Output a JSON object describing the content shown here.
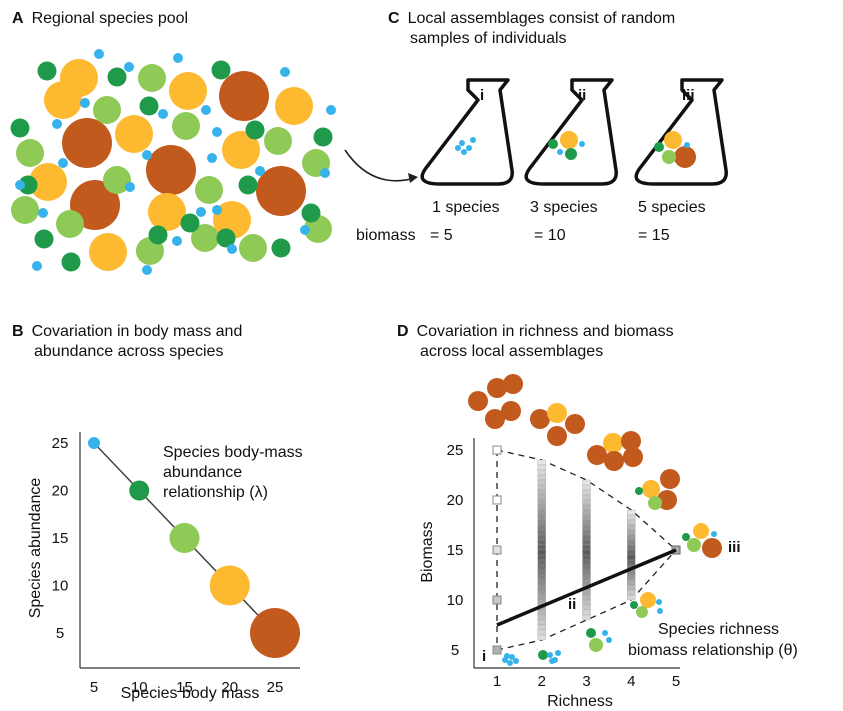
{
  "colors": {
    "tiny": "#36b3ea",
    "small": "#1f9a4a",
    "medium": "#8fca57",
    "large": "#fdb92f",
    "xlarge": "#c25a1e"
  },
  "panelA": {
    "letter": "A",
    "title": "Regional species pool"
  },
  "panelB": {
    "letter": "B",
    "title_line1": "Covariation in body mass and",
    "title_line2": "abundance across species",
    "annotation_line1": "Species body-mass",
    "annotation_line2": "abundance",
    "annotation_line3": "relationship (λ)",
    "chart_data": {
      "type": "scatter",
      "xlabel": "Species body mass",
      "ylabel": "Species abundance",
      "x_ticks": [
        "5",
        "10",
        "15",
        "20",
        "25"
      ],
      "y_ticks": [
        "25",
        "20",
        "15",
        "10",
        "5"
      ],
      "points": [
        {
          "x": 5,
          "y": 25,
          "color": "tiny"
        },
        {
          "x": 10,
          "y": 20,
          "color": "small"
        },
        {
          "x": 15,
          "y": 15,
          "color": "medium"
        },
        {
          "x": 20,
          "y": 10,
          "color": "large"
        },
        {
          "x": 25,
          "y": 5,
          "color": "xlarge"
        }
      ]
    }
  },
  "panelC": {
    "letter": "C",
    "title_line1": "Local assemblages consist of random",
    "title_line2": "samples of individuals",
    "flasks": [
      {
        "label": "i",
        "species": "1 species",
        "biomass": "= 5"
      },
      {
        "label": "ii",
        "species": "3 species",
        "biomass": "= 10"
      },
      {
        "label": "iii",
        "species": "5 species",
        "biomass": "= 15"
      }
    ],
    "biomass_prefix": "biomass"
  },
  "panelD": {
    "letter": "D",
    "title_line1": "Covariation in richness and biomass",
    "title_line2": "across local assemblages",
    "annotation_line1": "Species richness",
    "annotation_line2": "biomass relationship (θ)",
    "marker_i": "i",
    "marker_ii": "ii",
    "marker_iii": "iii",
    "chart_data": {
      "type": "scatter",
      "xlabel": "Richness",
      "ylabel": "Biomass",
      "x_ticks": [
        "1",
        "2",
        "3",
        "4",
        "5"
      ],
      "y_ticks": [
        "25",
        "20",
        "15",
        "10",
        "5"
      ],
      "xlim": [
        1,
        5
      ],
      "ylim": [
        5,
        25
      ],
      "ranges": [
        {
          "richness": 1,
          "min": 5,
          "max": 25
        },
        {
          "richness": 2,
          "min": 6,
          "max": 24
        },
        {
          "richness": 3,
          "min": 8,
          "max": 22
        },
        {
          "richness": 4,
          "min": 10,
          "max": 19
        },
        {
          "richness": 5,
          "min": 15,
          "max": 15
        }
      ],
      "trend": {
        "x": [
          1,
          5
        ],
        "y": [
          7.5,
          15
        ]
      }
    }
  }
}
